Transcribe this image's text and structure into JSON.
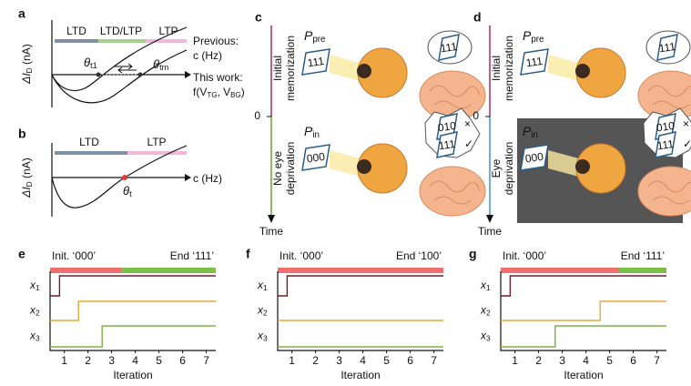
{
  "panel_a": {
    "label": "a",
    "ylabel": {
      "main": "ΔI",
      "sub": "D",
      "unit": " (nA)"
    },
    "regions": [
      "LTD",
      "LTD/LTP",
      "LTP"
    ],
    "theta1": {
      "main": "θ",
      "sub": "t1"
    },
    "theta2": {
      "main": "θ",
      "sub": "tm"
    },
    "previous": "Previous:",
    "previous_var": "c (Hz)",
    "this_work": "This work:",
    "this_work_func": {
      "f": "f(V",
      "s1": "TG",
      "mid": ", V",
      "s2": "BG",
      "end": ")"
    }
  },
  "panel_b": {
    "label": "b",
    "ylabel": {
      "main": "ΔI",
      "sub": "D",
      "unit": " (nA)"
    },
    "regions": [
      "LTD",
      "LTP"
    ],
    "theta": {
      "main": "θ",
      "sub": "t"
    },
    "xlabel": "c (Hz)"
  },
  "panel_c": {
    "label": "c",
    "p_pre": {
      "main": "P",
      "sub": "pre"
    },
    "p_in": {
      "main": "P",
      "sub": "in"
    },
    "pattern_pre": "111",
    "pattern_in": "000",
    "bubble_top": "111",
    "bubble_bottom": [
      "010",
      "111"
    ],
    "phase1": [
      "Initial",
      "memorization"
    ],
    "phase2": [
      "No eye",
      "deprivation"
    ],
    "zero": "0",
    "time": "Time"
  },
  "panel_d": {
    "label": "d",
    "p_pre": {
      "main": "P",
      "sub": "pre"
    },
    "p_in": {
      "main": "P",
      "sub": "in"
    },
    "pattern_pre": "111",
    "pattern_in": "000",
    "bubble_top": "111",
    "bubble_bottom": [
      "010",
      "111"
    ],
    "phase1": [
      "Initial",
      "memorization"
    ],
    "phase2": [
      "Eye",
      "deprivation"
    ],
    "zero": "0",
    "time": "Time"
  },
  "charts": [
    {
      "label": "e",
      "start": "Init. ‘000’",
      "end": "End ‘111’",
      "xlabel": "Iteration",
      "xlim": [
        0.4,
        7.4
      ],
      "xticks": [
        1,
        2,
        3,
        4,
        5,
        6,
        7
      ],
      "bars": [
        {
          "color": "#f07070",
          "from": 0.4,
          "to": 3.4
        },
        {
          "color": "#7cc04a",
          "from": 3.4,
          "to": 7.4
        }
      ],
      "signals": [
        {
          "name": {
            "main": "x",
            "sub": "1"
          },
          "color": "#6b1d2a",
          "switch": 0.8
        },
        {
          "name": {
            "main": "x",
            "sub": "2"
          },
          "color": "#e6a83a",
          "switch": 1.6
        },
        {
          "name": {
            "main": "x",
            "sub": "3"
          },
          "color": "#7cb342",
          "switch": 2.6
        }
      ]
    },
    {
      "label": "f",
      "start": "Init. ‘000’",
      "end": "End ‘100’",
      "xlabel": "Iteration",
      "xlim": [
        0.4,
        7.4
      ],
      "xticks": [
        1,
        2,
        3,
        4,
        5,
        6,
        7
      ],
      "bars": [
        {
          "color": "#f07070",
          "from": 0.4,
          "to": 7.4
        }
      ],
      "signals": [
        {
          "name": {
            "main": "x",
            "sub": "1"
          },
          "color": "#6b1d2a",
          "switch": 0.8
        },
        {
          "name": {
            "main": "x",
            "sub": "2"
          },
          "color": "#e6a83a",
          "switch": null
        },
        {
          "name": {
            "main": "x",
            "sub": "3"
          },
          "color": "#7cb342",
          "switch": null
        }
      ]
    },
    {
      "label": "g",
      "start": "Init. ‘000’",
      "end": "End ‘111’",
      "xlabel": "Iteration",
      "xlim": [
        0.4,
        7.4
      ],
      "xticks": [
        1,
        2,
        3,
        4,
        5,
        6,
        7
      ],
      "bars": [
        {
          "color": "#f07070",
          "from": 0.4,
          "to": 5.4
        },
        {
          "color": "#7cc04a",
          "from": 5.4,
          "to": 7.4
        }
      ],
      "signals": [
        {
          "name": {
            "main": "x",
            "sub": "1"
          },
          "color": "#6b1d2a",
          "switch": 0.8
        },
        {
          "name": {
            "main": "x",
            "sub": "2"
          },
          "color": "#e6a83a",
          "switch": 4.6
        },
        {
          "name": {
            "main": "x",
            "sub": "3"
          },
          "color": "#7cb342",
          "switch": 2.7
        }
      ]
    }
  ]
}
